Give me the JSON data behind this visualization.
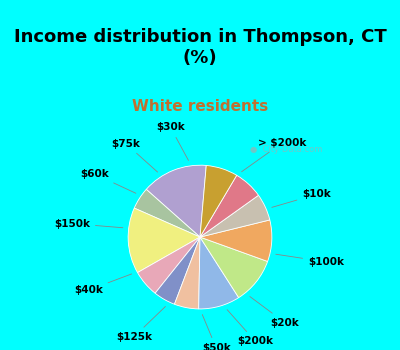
{
  "title": "Income distribution in Thompson, CT\n(%)",
  "subtitle": "White residents",
  "labels": [
    "> $200k",
    "$10k",
    "$100k",
    "$20k",
    "$200k",
    "$50k",
    "$125k",
    "$40k",
    "$150k",
    "$60k",
    "$75k",
    "$30k"
  ],
  "sizes": [
    13.5,
    4.5,
    13.5,
    5.5,
    4.5,
    5.0,
    8.5,
    9.5,
    8.5,
    5.5,
    6.0,
    6.5
  ],
  "colors": [
    "#b0a0d0",
    "#a8c4a0",
    "#f0f080",
    "#e8a8b8",
    "#8090c8",
    "#f0c0a0",
    "#90b8e8",
    "#c0e888",
    "#f0a860",
    "#c8c0b0",
    "#e07888",
    "#c8a030"
  ],
  "bg_top": "#00ffff",
  "bg_chart": "#d8eedd",
  "title_fontsize": 13,
  "subtitle_fontsize": 11,
  "subtitle_color": "#c07030",
  "label_fontsize": 7.5,
  "startangle": 85,
  "watermark": "City-Data.com"
}
